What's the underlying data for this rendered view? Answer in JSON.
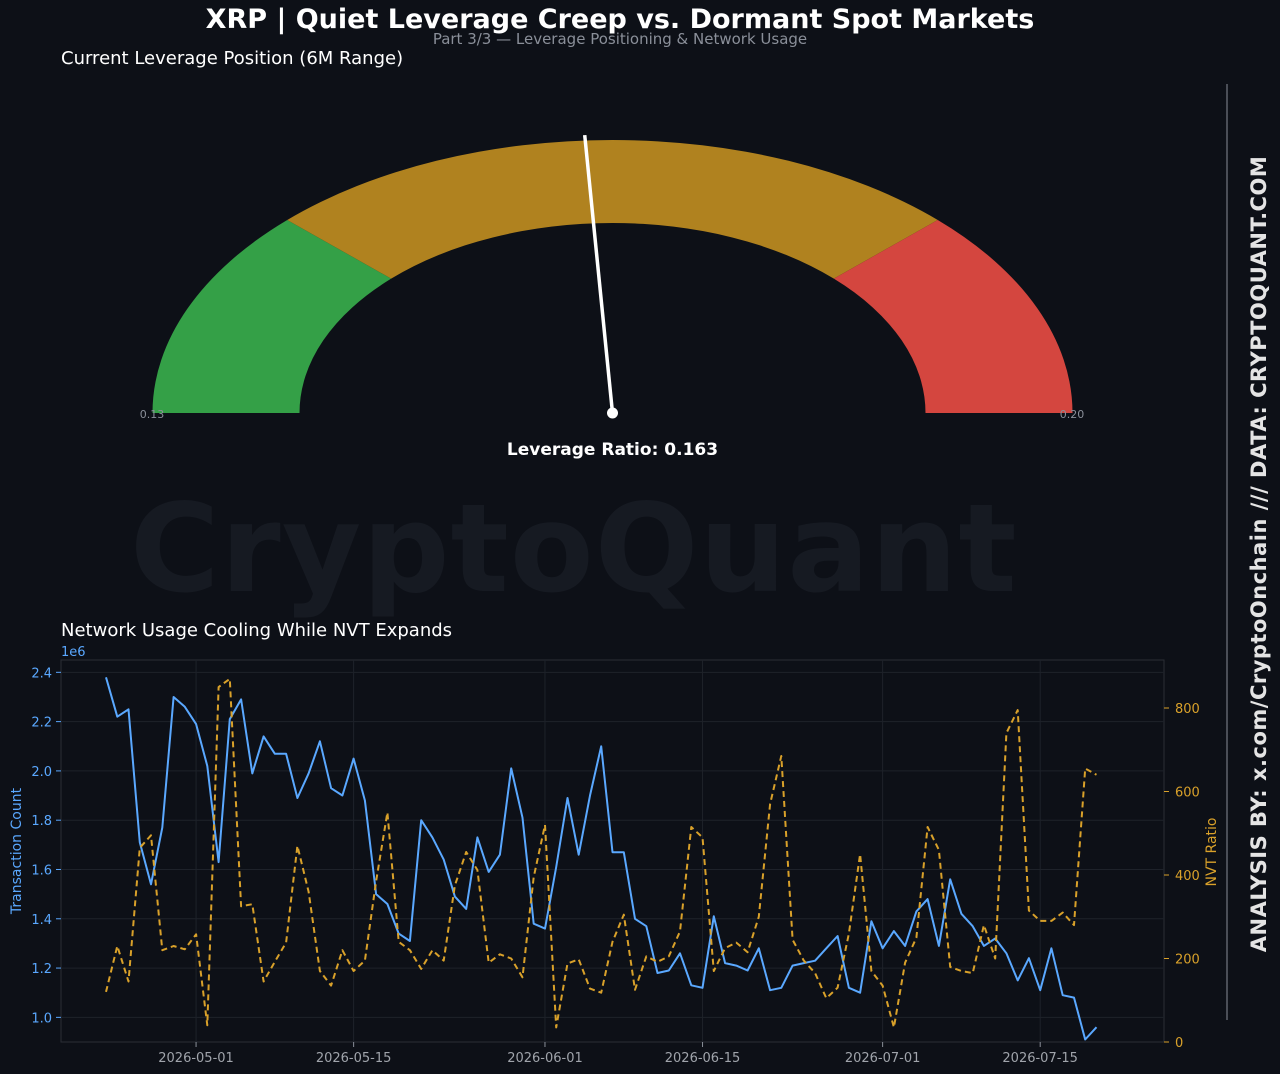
{
  "header": {
    "title": "XRP | Quiet Leverage Creep vs. Dormant Spot Markets",
    "subtitle": "Part 3/3 — Leverage Positioning & Network Usage"
  },
  "watermark": "CryptoQuant",
  "side_credit": "ANALYSIS BY: x.com/CryptoOnchain   ///   DATA: CRYPTOQUANT.COM",
  "colors": {
    "background": "#0d1017",
    "gauge_low": "#34a047",
    "gauge_mid": "#b0821f",
    "gauge_high": "#d4463f",
    "tx_line": "#5aa8ff",
    "nvt_line": "#d9a12a"
  },
  "chart_data": [
    {
      "type": "gauge",
      "title": "Current Leverage Position (6M Range)",
      "min_label": "0.13",
      "max_label": "0.20",
      "range": [
        0.13,
        0.2
      ],
      "value": 0.163,
      "value_label": "Leverage Ratio: 0.163",
      "bands": [
        {
          "from": 0.13,
          "to": 0.1475,
          "color": "#34a047"
        },
        {
          "from": 0.1475,
          "to": 0.1825,
          "color": "#b0821f"
        },
        {
          "from": 0.1825,
          "to": 0.2,
          "color": "#d4463f"
        }
      ]
    },
    {
      "type": "line",
      "title": "Network Usage Cooling While NVT Expands",
      "x_start": "2026-04-23",
      "x_ticks": [
        "2026-05-01",
        "2026-05-15",
        "2026-06-01",
        "2026-06-15",
        "2026-07-01",
        "2026-07-15"
      ],
      "xlim": [
        "2026-04-19",
        "2026-07-26"
      ],
      "grid": true,
      "y_left": {
        "label": "Transaction Count",
        "offset_label": "1e6",
        "lim": [
          0.9,
          2.45
        ],
        "ticks": [
          "1.0",
          "1.2",
          "1.4",
          "1.6",
          "1.8",
          "2.0",
          "2.2",
          "2.4"
        ]
      },
      "y_right": {
        "label": "NVT Ratio",
        "lim": [
          0,
          915
        ],
        "ticks": [
          "0",
          "200",
          "400",
          "600",
          "800"
        ]
      },
      "series": [
        {
          "axis": "left",
          "style": "solid",
          "values": [
            2.38,
            2.22,
            2.25,
            1.71,
            1.54,
            1.77,
            2.3,
            2.26,
            2.19,
            2.02,
            1.63,
            2.21,
            2.29,
            1.99,
            2.14,
            2.07,
            2.07,
            1.89,
            1.99,
            2.12,
            1.93,
            1.9,
            2.05,
            1.88,
            1.5,
            1.46,
            1.34,
            1.31,
            1.8,
            1.73,
            1.64,
            1.49,
            1.44,
            1.73,
            1.59,
            1.66,
            2.01,
            1.81,
            1.38,
            1.36,
            1.61,
            1.89,
            1.66,
            1.9,
            2.1,
            1.67,
            1.67,
            1.4,
            1.37,
            1.18,
            1.19,
            1.26,
            1.13,
            1.12,
            1.41,
            1.22,
            1.21,
            1.19,
            1.28,
            1.11,
            1.12,
            1.21,
            1.22,
            1.23,
            1.28,
            1.33,
            1.12,
            1.1,
            1.39,
            1.28,
            1.35,
            1.29,
            1.43,
            1.48,
            1.29,
            1.56,
            1.42,
            1.37,
            1.29,
            1.32,
            1.26,
            1.15,
            1.24,
            1.11,
            1.28,
            1.09,
            1.08,
            0.91,
            0.96
          ]
        },
        {
          "axis": "right",
          "style": "dashed",
          "values": [
            120,
            230,
            145,
            465,
            495,
            220,
            230,
            222,
            258,
            40,
            850,
            870,
            325,
            330,
            145,
            192,
            238,
            470,
            360,
            170,
            135,
            220,
            170,
            195,
            385,
            550,
            240,
            220,
            175,
            220,
            195,
            375,
            455,
            412,
            190,
            210,
            200,
            155,
            395,
            520,
            35,
            188,
            198,
            128,
            118,
            240,
            305,
            125,
            205,
            192,
            205,
            265,
            515,
            490,
            170,
            225,
            238,
            215,
            300,
            570,
            685,
            245,
            195,
            165,
            105,
            130,
            260,
            450,
            170,
            135,
            35,
            190,
            250,
            515,
            460,
            180,
            170,
            165,
            280,
            200,
            740,
            795,
            315,
            290,
            290,
            310,
            280,
            655,
            640
          ]
        }
      ]
    }
  ]
}
